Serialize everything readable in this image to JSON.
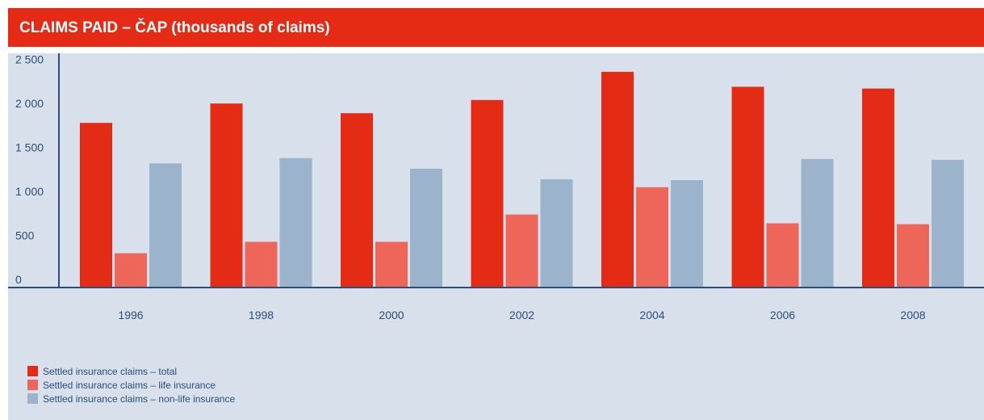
{
  "title": "CLAIMS PAID – ČAP (thousands of claims)",
  "colors": {
    "title_bg": "#e42b16",
    "panel_bg": "#d8e1eb",
    "axis": "#2a4d7a",
    "text": "#2a4d7a"
  },
  "legend": [
    {
      "label": "Settled insurance claims – total",
      "color": "#e42b16"
    },
    {
      "label": "Settled insurance claims – life insurance",
      "color": "#ee655a"
    },
    {
      "label": "Settled insurance claims – non-life insurance",
      "color": "#9bb3cb"
    }
  ],
  "chart_data": {
    "type": "bar",
    "title": "CLAIMS PAID – ČAP (thousands of claims)",
    "categories": [
      "1996",
      "1998",
      "2000",
      "2002",
      "2004",
      "2006",
      "2008"
    ],
    "series": [
      {
        "name": "Settled insurance claims – total",
        "color": "#e42b16",
        "values": [
          1860,
          2080,
          1970,
          2120,
          2440,
          2270,
          2250
        ]
      },
      {
        "name": "Settled insurance claims – life insurance",
        "color": "#ee655a",
        "values": [
          380,
          510,
          510,
          820,
          1130,
          720,
          710
        ]
      },
      {
        "name": "Settled insurance claims – non-life insurance",
        "color": "#9bb3cb",
        "values": [
          1400,
          1460,
          1340,
          1220,
          1210,
          1450,
          1440
        ]
      }
    ],
    "yticks": [
      0,
      500,
      1000,
      1500,
      2000,
      2500
    ],
    "ytick_labels": [
      "0",
      "500",
      "1 000",
      "1 500",
      "2 000",
      "2 500"
    ],
    "ylim": [
      0,
      2650
    ],
    "grid": false,
    "legend_position": "bottom-left"
  }
}
